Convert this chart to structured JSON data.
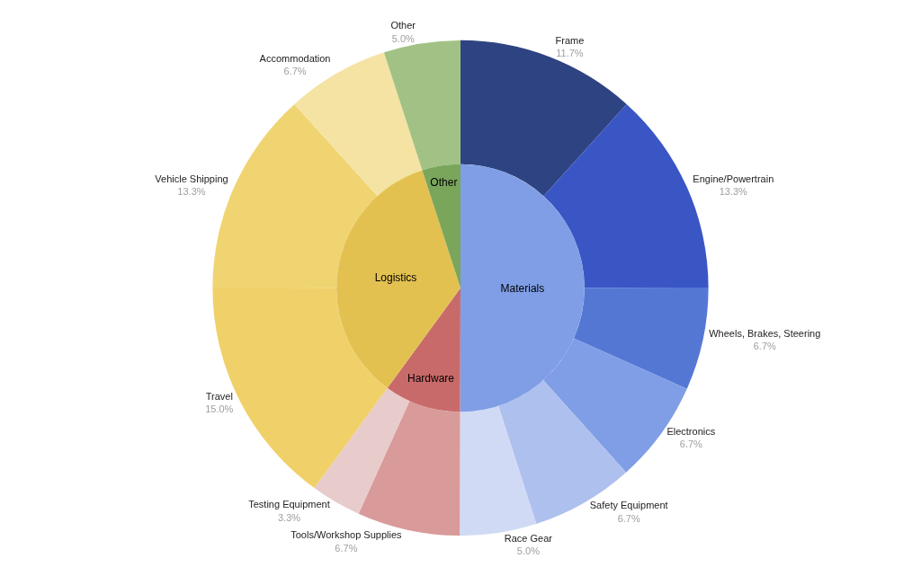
{
  "chart_data": [
    {
      "type": "donut",
      "categories": [
        "Frame",
        "Engine/Powertrain",
        "Wheels, Brakes, Steering",
        "Electronics",
        "Safety Equipment",
        "Race Gear",
        "Tools/Workshop Supplies",
        "Testing Equipment",
        "Travel",
        "Vehicle Shipping",
        "Accommodation",
        "Other"
      ],
      "values": [
        11.7,
        13.3,
        6.7,
        6.7,
        6.7,
        5.0,
        6.7,
        3.3,
        15.0,
        13.3,
        6.7,
        5.0
      ],
      "value_labels": [
        "11.7%",
        "13.3%",
        "6.7%",
        "6.7%",
        "6.7%",
        "5.0%",
        "6.7%",
        "3.3%",
        "15.0%",
        "13.3%",
        "6.7%",
        "5.0%"
      ],
      "colors": [
        "#2e4482",
        "#3a56c5",
        "#5577d4",
        "#7f9ee6",
        "#aec0ee",
        "#d0daf5",
        "#d99a9a",
        "#e8cbcb",
        "#f0d068",
        "#f0d472",
        "#f5e3a3",
        "#a1c284"
      ],
      "legend": false
    },
    {
      "type": "pie",
      "categories": [
        "Materials",
        "Hardware",
        "Logistics",
        "Other"
      ],
      "values": [
        50.1,
        10.0,
        35.0,
        5.0
      ],
      "colors": [
        "#7f9ee6",
        "#c96a6a",
        "#e3c150",
        "#79a65b"
      ],
      "legend": false
    }
  ]
}
